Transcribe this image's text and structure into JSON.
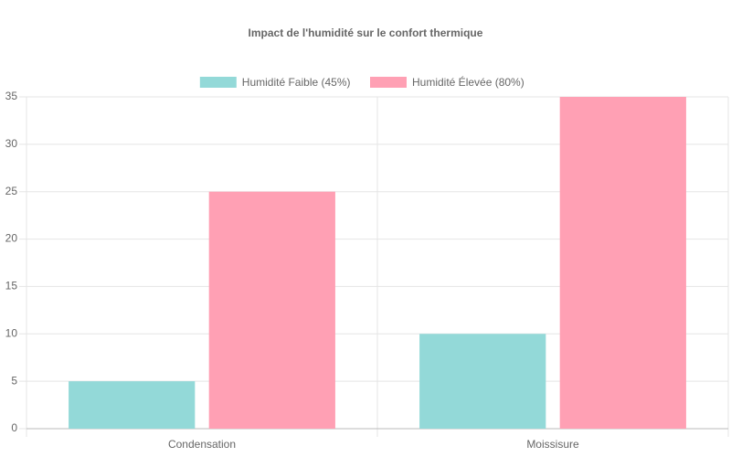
{
  "chart_data": {
    "type": "bar",
    "title": "Impact de l'humidité sur le confort thermique",
    "categories": [
      "Condensation",
      "Moissisure"
    ],
    "series": [
      {
        "name": "Humidité Faible (45%)",
        "color": "#93d9d8",
        "values": [
          5,
          10
        ]
      },
      {
        "name": "Humidité Élevée (80%)",
        "color": "#ffa0b4",
        "values": [
          25,
          35
        ]
      }
    ],
    "ylim": [
      0,
      35
    ],
    "yticks": [
      0,
      5,
      10,
      15,
      20,
      25,
      30,
      35
    ],
    "grid": true,
    "legend": "top"
  }
}
